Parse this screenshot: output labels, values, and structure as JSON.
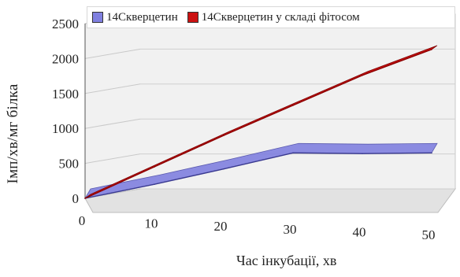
{
  "chart_data": {
    "type": "line",
    "title": "",
    "xlabel": "Час інкубації, хв",
    "ylabel": "Імп/хв/мг білка",
    "x": [
      0,
      10,
      20,
      30,
      40,
      50
    ],
    "xticks": [
      "0",
      "10",
      "20",
      "30",
      "40",
      "50"
    ],
    "yticks": [
      "0",
      "500",
      "1000",
      "1500",
      "2000",
      "2500"
    ],
    "ylim": [
      0,
      2500
    ],
    "xlim": [
      0,
      50
    ],
    "grid": true,
    "legend_position": "top",
    "series": [
      {
        "name": "14Скверцетин",
        "color": "#8080e0",
        "values": [
          0,
          200,
          420,
          650,
          640,
          650
        ]
      },
      {
        "name": "14Скверцетин у складі фітосом",
        "color": "#cc1111",
        "values": [
          0,
          450,
          900,
          1330,
          1760,
          2130
        ]
      }
    ]
  }
}
